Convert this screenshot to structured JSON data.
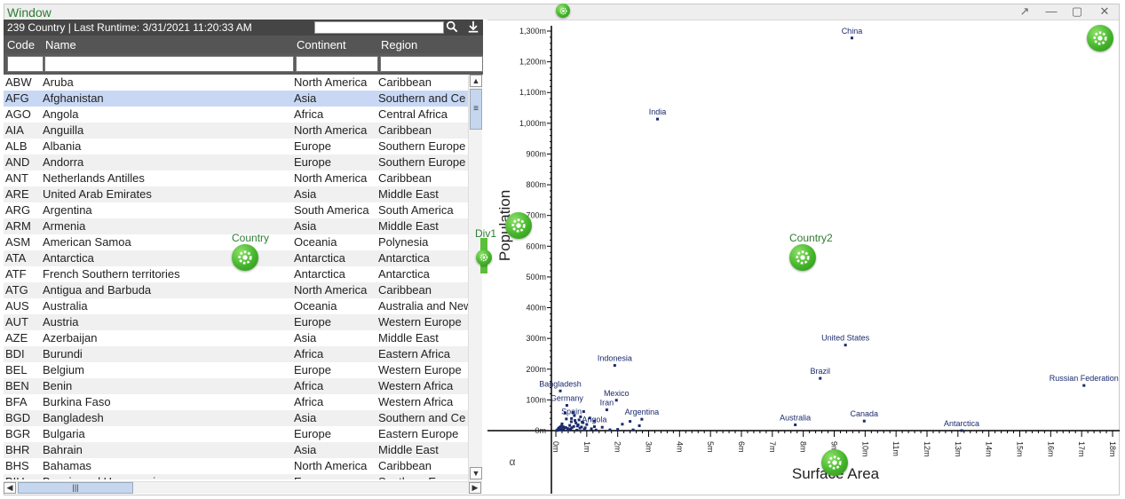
{
  "window": {
    "title": "Window",
    "controls": {
      "popout": "↗",
      "minimize": "—",
      "maximize": "▢",
      "close": "✕"
    }
  },
  "grid": {
    "header_text": "239 Country | Last Runtime: 3/31/2021 11:20:33 AM",
    "search_placeholder": "",
    "icons": {
      "search": "search-icon",
      "download": "download-icon"
    },
    "columns": [
      "Code",
      "Name",
      "Continent",
      "Region"
    ],
    "selected_row_index": 1,
    "rows": [
      [
        "ABW",
        "Aruba",
        "North America",
        "Caribbean"
      ],
      [
        "AFG",
        "Afghanistan",
        "Asia",
        "Southern and Ce"
      ],
      [
        "AGO",
        "Angola",
        "Africa",
        "Central Africa"
      ],
      [
        "AIA",
        "Anguilla",
        "North America",
        "Caribbean"
      ],
      [
        "ALB",
        "Albania",
        "Europe",
        "Southern Europe"
      ],
      [
        "AND",
        "Andorra",
        "Europe",
        "Southern Europe"
      ],
      [
        "ANT",
        "Netherlands Antilles",
        "North America",
        "Caribbean"
      ],
      [
        "ARE",
        "United Arab Emirates",
        "Asia",
        "Middle East"
      ],
      [
        "ARG",
        "Argentina",
        "South America",
        "South America"
      ],
      [
        "ARM",
        "Armenia",
        "Asia",
        "Middle East"
      ],
      [
        "ASM",
        "American Samoa",
        "Oceania",
        "Polynesia"
      ],
      [
        "ATA",
        "Antarctica",
        "Antarctica",
        "Antarctica"
      ],
      [
        "ATF",
        "French Southern territories",
        "Antarctica",
        "Antarctica"
      ],
      [
        "ATG",
        "Antigua and Barbuda",
        "North America",
        "Caribbean"
      ],
      [
        "AUS",
        "Australia",
        "Oceania",
        "Australia and New"
      ],
      [
        "AUT",
        "Austria",
        "Europe",
        "Western Europe"
      ],
      [
        "AZE",
        "Azerbaijan",
        "Asia",
        "Middle East"
      ],
      [
        "BDI",
        "Burundi",
        "Africa",
        "Eastern Africa"
      ],
      [
        "BEL",
        "Belgium",
        "Europe",
        "Western Europe"
      ],
      [
        "BEN",
        "Benin",
        "Africa",
        "Western Africa"
      ],
      [
        "BFA",
        "Burkina Faso",
        "Africa",
        "Western Africa"
      ],
      [
        "BGD",
        "Bangladesh",
        "Asia",
        "Southern and Ce"
      ],
      [
        "BGR",
        "Bulgaria",
        "Europe",
        "Eastern Europe"
      ],
      [
        "BHR",
        "Bahrain",
        "Asia",
        "Middle East"
      ],
      [
        "BHS",
        "Bahamas",
        "North America",
        "Caribbean"
      ],
      [
        "BIH",
        "Bosnia and Herzegovina",
        "Europe",
        "Southern Europe"
      ]
    ]
  },
  "widgets": {
    "country_label": "Country",
    "div1_label": "Div1",
    "country2_label": "Country2"
  },
  "chart_data": {
    "type": "scatter",
    "xlabel": "Surface Area",
    "ylabel": "Population",
    "corner_label": "α",
    "xlim": [
      0,
      18000000
    ],
    "ylim": [
      0,
      1300000000
    ],
    "x_ticks": [
      "0m",
      "1m",
      "2m",
      "3m",
      "4m",
      "5m",
      "6m",
      "7m",
      "8m",
      "9m",
      "10m",
      "11m",
      "12m",
      "13m",
      "14m",
      "15m",
      "16m",
      "17m",
      "18m"
    ],
    "y_ticks": [
      "0m",
      "100m",
      "200m",
      "300m",
      "400m",
      "500m",
      "600m",
      "700m",
      "800m",
      "900m",
      "1,000m",
      "1,100m",
      "1,200m",
      "1,300m"
    ],
    "point_color": "#1a2a6c",
    "labeled_points": [
      {
        "label": "China",
        "x": 9572900,
        "y": 1277558000
      },
      {
        "label": "India",
        "x": 3287263,
        "y": 1013662000
      },
      {
        "label": "United States",
        "x": 9363520,
        "y": 278357000
      },
      {
        "label": "Indonesia",
        "x": 1904569,
        "y": 212107000
      },
      {
        "label": "Brazil",
        "x": 8547403,
        "y": 170115000
      },
      {
        "label": "Russian Federation",
        "x": 17075400,
        "y": 146934000
      },
      {
        "label": "Bangladesh",
        "x": 143998,
        "y": 129155000
      },
      {
        "label": "Germany",
        "x": 357022,
        "y": 82164700
      },
      {
        "label": "Mexico",
        "x": 1958201,
        "y": 98881000
      },
      {
        "label": "Iran",
        "x": 1648195,
        "y": 67702000
      },
      {
        "label": "Argentina",
        "x": 2780400,
        "y": 37032000
      },
      {
        "label": "Spain",
        "x": 505992,
        "y": 39441700
      },
      {
        "label": "Angola",
        "x": 1246700,
        "y": 12878000
      },
      {
        "label": "Australia",
        "x": 7741220,
        "y": 18886000
      },
      {
        "label": "Canada",
        "x": 9970610,
        "y": 31147000
      },
      {
        "label": "Antarctica",
        "x": 13120000,
        "y": 0
      }
    ],
    "other_points": [
      [
        100000,
        5000000
      ],
      [
        150000,
        12000000
      ],
      [
        200000,
        22000000
      ],
      [
        250000,
        8000000
      ],
      [
        300000,
        57000000
      ],
      [
        320000,
        10000000
      ],
      [
        400000,
        3000000
      ],
      [
        450000,
        17000000
      ],
      [
        500000,
        29000000
      ],
      [
        550000,
        59000000
      ],
      [
        600000,
        49000000
      ],
      [
        650000,
        25000000
      ],
      [
        700000,
        15000000
      ],
      [
        750000,
        35000000
      ],
      [
        800000,
        45000000
      ],
      [
        850000,
        28000000
      ],
      [
        900000,
        62000000
      ],
      [
        950000,
        9000000
      ],
      [
        1000000,
        20000000
      ],
      [
        1100000,
        41000000
      ],
      [
        1150000,
        6000000
      ],
      [
        1250000,
        31000000
      ],
      [
        1300000,
        2000000
      ],
      [
        1500000,
        11000000
      ],
      [
        1750000,
        2600000
      ],
      [
        2000000,
        4000000
      ],
      [
        2150000,
        21000000
      ],
      [
        2400000,
        30000000
      ],
      [
        2500000,
        2400000
      ],
      [
        2700000,
        16000000
      ],
      [
        50000,
        1000000
      ],
      [
        70000,
        3500000
      ],
      [
        90000,
        7500000
      ],
      [
        120000,
        10500000
      ],
      [
        180000,
        15000000
      ],
      [
        220000,
        1800000
      ],
      [
        260000,
        4200000
      ],
      [
        340000,
        38000000
      ],
      [
        380000,
        7000000
      ],
      [
        420000,
        2200000
      ],
      [
        480000,
        5500000
      ],
      [
        520000,
        9500000
      ],
      [
        580000,
        13500000
      ],
      [
        620000,
        33000000
      ],
      [
        680000,
        1500000
      ],
      [
        720000,
        19000000
      ],
      [
        780000,
        8500000
      ],
      [
        830000,
        11800000
      ],
      [
        880000,
        26000000
      ],
      [
        920000,
        3800000
      ],
      [
        30000,
        500000
      ],
      [
        60000,
        2800000
      ],
      [
        110000,
        6400000
      ],
      [
        160000,
        4600000
      ],
      [
        240000,
        12500000
      ]
    ]
  }
}
